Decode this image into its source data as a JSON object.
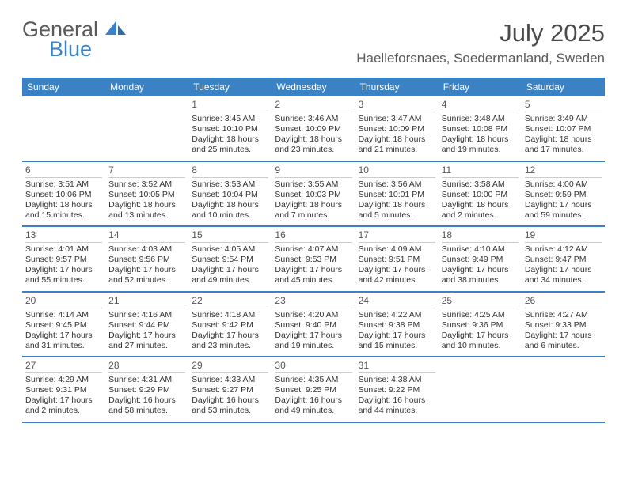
{
  "brand": {
    "part1": "General",
    "part2": "Blue"
  },
  "title": "July 2025",
  "location": "Haelleforsnaes, Soedermanland, Sweden",
  "accent_color": "#3b82c4",
  "day_headers": [
    "Sunday",
    "Monday",
    "Tuesday",
    "Wednesday",
    "Thursday",
    "Friday",
    "Saturday"
  ],
  "weeks": [
    [
      {
        "n": "",
        "sunrise": "",
        "sunset": "",
        "daylight": ""
      },
      {
        "n": "",
        "sunrise": "",
        "sunset": "",
        "daylight": ""
      },
      {
        "n": "1",
        "sunrise": "Sunrise: 3:45 AM",
        "sunset": "Sunset: 10:10 PM",
        "daylight": "Daylight: 18 hours and 25 minutes."
      },
      {
        "n": "2",
        "sunrise": "Sunrise: 3:46 AM",
        "sunset": "Sunset: 10:09 PM",
        "daylight": "Daylight: 18 hours and 23 minutes."
      },
      {
        "n": "3",
        "sunrise": "Sunrise: 3:47 AM",
        "sunset": "Sunset: 10:09 PM",
        "daylight": "Daylight: 18 hours and 21 minutes."
      },
      {
        "n": "4",
        "sunrise": "Sunrise: 3:48 AM",
        "sunset": "Sunset: 10:08 PM",
        "daylight": "Daylight: 18 hours and 19 minutes."
      },
      {
        "n": "5",
        "sunrise": "Sunrise: 3:49 AM",
        "sunset": "Sunset: 10:07 PM",
        "daylight": "Daylight: 18 hours and 17 minutes."
      }
    ],
    [
      {
        "n": "6",
        "sunrise": "Sunrise: 3:51 AM",
        "sunset": "Sunset: 10:06 PM",
        "daylight": "Daylight: 18 hours and 15 minutes."
      },
      {
        "n": "7",
        "sunrise": "Sunrise: 3:52 AM",
        "sunset": "Sunset: 10:05 PM",
        "daylight": "Daylight: 18 hours and 13 minutes."
      },
      {
        "n": "8",
        "sunrise": "Sunrise: 3:53 AM",
        "sunset": "Sunset: 10:04 PM",
        "daylight": "Daylight: 18 hours and 10 minutes."
      },
      {
        "n": "9",
        "sunrise": "Sunrise: 3:55 AM",
        "sunset": "Sunset: 10:03 PM",
        "daylight": "Daylight: 18 hours and 7 minutes."
      },
      {
        "n": "10",
        "sunrise": "Sunrise: 3:56 AM",
        "sunset": "Sunset: 10:01 PM",
        "daylight": "Daylight: 18 hours and 5 minutes."
      },
      {
        "n": "11",
        "sunrise": "Sunrise: 3:58 AM",
        "sunset": "Sunset: 10:00 PM",
        "daylight": "Daylight: 18 hours and 2 minutes."
      },
      {
        "n": "12",
        "sunrise": "Sunrise: 4:00 AM",
        "sunset": "Sunset: 9:59 PM",
        "daylight": "Daylight: 17 hours and 59 minutes."
      }
    ],
    [
      {
        "n": "13",
        "sunrise": "Sunrise: 4:01 AM",
        "sunset": "Sunset: 9:57 PM",
        "daylight": "Daylight: 17 hours and 55 minutes."
      },
      {
        "n": "14",
        "sunrise": "Sunrise: 4:03 AM",
        "sunset": "Sunset: 9:56 PM",
        "daylight": "Daylight: 17 hours and 52 minutes."
      },
      {
        "n": "15",
        "sunrise": "Sunrise: 4:05 AM",
        "sunset": "Sunset: 9:54 PM",
        "daylight": "Daylight: 17 hours and 49 minutes."
      },
      {
        "n": "16",
        "sunrise": "Sunrise: 4:07 AM",
        "sunset": "Sunset: 9:53 PM",
        "daylight": "Daylight: 17 hours and 45 minutes."
      },
      {
        "n": "17",
        "sunrise": "Sunrise: 4:09 AM",
        "sunset": "Sunset: 9:51 PM",
        "daylight": "Daylight: 17 hours and 42 minutes."
      },
      {
        "n": "18",
        "sunrise": "Sunrise: 4:10 AM",
        "sunset": "Sunset: 9:49 PM",
        "daylight": "Daylight: 17 hours and 38 minutes."
      },
      {
        "n": "19",
        "sunrise": "Sunrise: 4:12 AM",
        "sunset": "Sunset: 9:47 PM",
        "daylight": "Daylight: 17 hours and 34 minutes."
      }
    ],
    [
      {
        "n": "20",
        "sunrise": "Sunrise: 4:14 AM",
        "sunset": "Sunset: 9:45 PM",
        "daylight": "Daylight: 17 hours and 31 minutes."
      },
      {
        "n": "21",
        "sunrise": "Sunrise: 4:16 AM",
        "sunset": "Sunset: 9:44 PM",
        "daylight": "Daylight: 17 hours and 27 minutes."
      },
      {
        "n": "22",
        "sunrise": "Sunrise: 4:18 AM",
        "sunset": "Sunset: 9:42 PM",
        "daylight": "Daylight: 17 hours and 23 minutes."
      },
      {
        "n": "23",
        "sunrise": "Sunrise: 4:20 AM",
        "sunset": "Sunset: 9:40 PM",
        "daylight": "Daylight: 17 hours and 19 minutes."
      },
      {
        "n": "24",
        "sunrise": "Sunrise: 4:22 AM",
        "sunset": "Sunset: 9:38 PM",
        "daylight": "Daylight: 17 hours and 15 minutes."
      },
      {
        "n": "25",
        "sunrise": "Sunrise: 4:25 AM",
        "sunset": "Sunset: 9:36 PM",
        "daylight": "Daylight: 17 hours and 10 minutes."
      },
      {
        "n": "26",
        "sunrise": "Sunrise: 4:27 AM",
        "sunset": "Sunset: 9:33 PM",
        "daylight": "Daylight: 17 hours and 6 minutes."
      }
    ],
    [
      {
        "n": "27",
        "sunrise": "Sunrise: 4:29 AM",
        "sunset": "Sunset: 9:31 PM",
        "daylight": "Daylight: 17 hours and 2 minutes."
      },
      {
        "n": "28",
        "sunrise": "Sunrise: 4:31 AM",
        "sunset": "Sunset: 9:29 PM",
        "daylight": "Daylight: 16 hours and 58 minutes."
      },
      {
        "n": "29",
        "sunrise": "Sunrise: 4:33 AM",
        "sunset": "Sunset: 9:27 PM",
        "daylight": "Daylight: 16 hours and 53 minutes."
      },
      {
        "n": "30",
        "sunrise": "Sunrise: 4:35 AM",
        "sunset": "Sunset: 9:25 PM",
        "daylight": "Daylight: 16 hours and 49 minutes."
      },
      {
        "n": "31",
        "sunrise": "Sunrise: 4:38 AM",
        "sunset": "Sunset: 9:22 PM",
        "daylight": "Daylight: 16 hours and 44 minutes."
      },
      {
        "n": "",
        "sunrise": "",
        "sunset": "",
        "daylight": ""
      },
      {
        "n": "",
        "sunrise": "",
        "sunset": "",
        "daylight": ""
      }
    ]
  ]
}
